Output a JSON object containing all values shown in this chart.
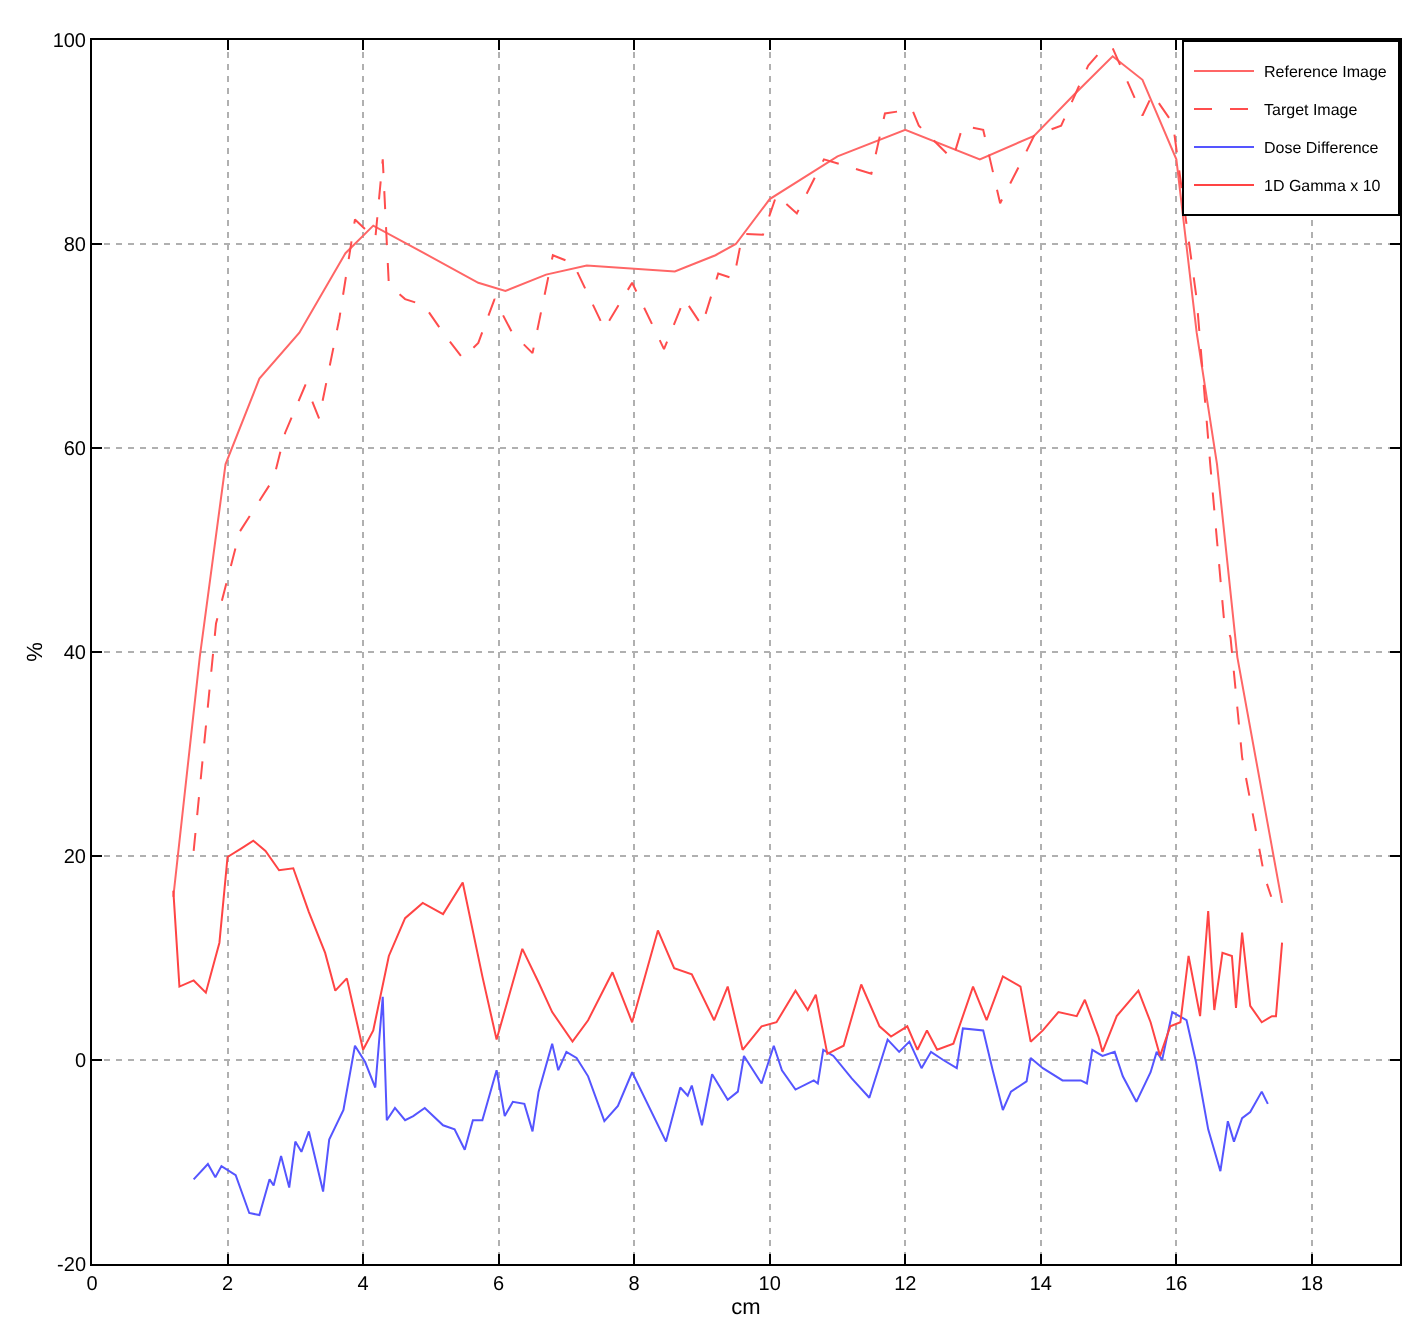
{
  "chart_data": {
    "type": "line",
    "xlabel": "cm",
    "ylabel": "%",
    "xlim": [
      0,
      19.3
    ],
    "ylim": [
      -20,
      100
    ],
    "xticks": [
      0,
      2,
      4,
      6,
      8,
      10,
      12,
      14,
      16,
      18
    ],
    "yticks": [
      -20,
      0,
      20,
      40,
      60,
      80,
      100
    ],
    "grid": true,
    "legend": "top right",
    "marker": "none",
    "series": [
      {
        "name": "Reference Image",
        "color": "#ff6666",
        "line_style": "solid",
        "x": [
          1.2,
          1.59,
          1.97,
          2.47,
          3.06,
          3.74,
          4.15,
          4.9,
          5.7,
          6.1,
          6.7,
          7.3,
          8.6,
          9.2,
          9.5,
          10.0,
          11.0,
          12.0,
          13.1,
          13.9,
          14.5,
          15.06,
          15.5,
          16.0,
          16.3,
          16.6,
          16.9,
          17.56
        ],
        "values": [
          16,
          39.5,
          58.4,
          66.8,
          71.3,
          79.1,
          81.8,
          79.1,
          76.2,
          75.4,
          77,
          77.9,
          77.3,
          78.9,
          80,
          84.4,
          88.6,
          91.2,
          88.3,
          90.6,
          94.7,
          98.4,
          96.1,
          88.3,
          71.3,
          58.4,
          39.5,
          15.4
        ]
      },
      {
        "name": "Target Image",
        "color": "#ff4d4d",
        "line_style": "dashed",
        "x": [
          1.5,
          1.83,
          2.18,
          2.68,
          2.85,
          3.15,
          3.35,
          3.65,
          3.88,
          4.18,
          4.29,
          4.38,
          4.62,
          4.9,
          5.18,
          5.47,
          5.7,
          5.94,
          6.2,
          6.5,
          6.8,
          7.1,
          7.56,
          7.97,
          8.44,
          8.74,
          9.0,
          9.24,
          9.47,
          9.6,
          9.9,
          10.1,
          10.4,
          10.8,
          11.1,
          11.5,
          11.7,
          12.1,
          12.2,
          12.7,
          12.85,
          13.15,
          13.4,
          13.7,
          13.9,
          14.3,
          14.7,
          14.9,
          15.06,
          15.5,
          15.65,
          15.95,
          16.1,
          16.3,
          16.5,
          16.7,
          16.8,
          16.97,
          17.3,
          17.4
        ],
        "values": [
          20.5,
          42.8,
          51.8,
          57,
          61.5,
          66.2,
          62.9,
          72.7,
          82.4,
          80.5,
          88.3,
          76,
          74.6,
          74,
          71.3,
          68.8,
          70.3,
          74.6,
          71.3,
          69.3,
          78.9,
          78.1,
          71.7,
          76.2,
          69.7,
          74.6,
          72,
          77.1,
          76.6,
          81,
          80.9,
          84.8,
          83,
          88.3,
          87.7,
          86.9,
          92.8,
          93.2,
          91.6,
          88.3,
          91.6,
          91.2,
          84,
          87.9,
          90.6,
          91.6,
          97.5,
          99,
          99.2,
          92.6,
          94.7,
          91.8,
          84.4,
          74.6,
          58.4,
          43.4,
          41.4,
          29.7,
          18,
          16
        ]
      },
      {
        "name": "Dose Difference",
        "color": "#5555ff",
        "line_style": "solid",
        "x": [
          1.5,
          1.71,
          1.82,
          1.91,
          2.12,
          2.32,
          2.47,
          2.62,
          2.68,
          2.79,
          2.91,
          3.0,
          3.09,
          3.2,
          3.41,
          3.5,
          3.71,
          3.88,
          4.03,
          4.18,
          4.29,
          4.35,
          4.47,
          4.62,
          4.74,
          4.91,
          5.18,
          5.35,
          5.5,
          5.62,
          5.76,
          5.97,
          6.09,
          6.21,
          6.38,
          6.5,
          6.59,
          6.79,
          6.88,
          7.0,
          7.15,
          7.32,
          7.56,
          7.76,
          7.97,
          8.47,
          8.68,
          8.79,
          8.85,
          9.0,
          9.15,
          9.38,
          9.53,
          9.62,
          9.88,
          10.06,
          10.18,
          10.38,
          10.65,
          10.71,
          10.79,
          10.94,
          11.21,
          11.47,
          11.74,
          11.91,
          12.06,
          12.24,
          12.38,
          12.56,
          12.76,
          12.85,
          13.15,
          13.29,
          13.44,
          13.56,
          13.79,
          13.85,
          14.03,
          14.32,
          14.59,
          14.68,
          14.76,
          14.91,
          15.09,
          15.21,
          15.41,
          15.62,
          15.71,
          15.79,
          15.94,
          16.15,
          16.29,
          16.47,
          16.65,
          16.76,
          16.85,
          16.97,
          17.09,
          17.26,
          17.35
        ],
        "values": [
          -11.7,
          -10.2,
          -11.5,
          -10.4,
          -11.3,
          -15,
          -15.2,
          -11.7,
          -12.3,
          -9.4,
          -12.5,
          -8,
          -9,
          -7,
          -12.9,
          -7.8,
          -4.9,
          1.4,
          -0.2,
          -2.7,
          6.2,
          -5.9,
          -4.7,
          -5.9,
          -5.5,
          -4.7,
          -6.4,
          -6.8,
          -8.8,
          -5.9,
          -5.9,
          -1,
          -5.5,
          -4.1,
          -4.3,
          -7,
          -3.1,
          1.6,
          -1,
          0.8,
          0.2,
          -1.6,
          -6,
          -4.5,
          -1.2,
          -8,
          -2.7,
          -3.5,
          -2.5,
          -6.4,
          -1.4,
          -3.9,
          -3.1,
          0.4,
          -2.3,
          1.4,
          -1,
          -2.9,
          -2,
          -2.3,
          1,
          0.4,
          -1.8,
          -3.7,
          2,
          0.8,
          1.8,
          -0.8,
          0.8,
          0,
          -0.8,
          3.1,
          2.9,
          -1,
          -4.9,
          -3.1,
          -2.1,
          0.2,
          -0.8,
          -2,
          -2,
          -2.3,
          1,
          0.4,
          0.8,
          -1.6,
          -4.1,
          -1.2,
          0.8,
          0,
          4.7,
          3.9,
          -0.2,
          -6.8,
          -10.9,
          -6,
          -8,
          -5.7,
          -5.1,
          -3.1,
          -4.3
        ]
      },
      {
        "name": "1D Gamma x 10",
        "color": "#ff4444",
        "line_style": "solid",
        "x": [
          1.2,
          1.29,
          1.5,
          1.68,
          1.88,
          2.0,
          2.24,
          2.38,
          2.56,
          2.76,
          2.97,
          3.2,
          3.44,
          3.59,
          3.76,
          4.0,
          4.15,
          4.38,
          4.62,
          4.88,
          5.18,
          5.47,
          5.76,
          5.97,
          6.35,
          6.59,
          6.79,
          7.09,
          7.32,
          7.68,
          7.97,
          8.35,
          8.59,
          8.85,
          9.18,
          9.38,
          9.6,
          9.88,
          10.1,
          10.38,
          10.56,
          10.68,
          10.85,
          11.09,
          11.35,
          11.62,
          11.79,
          12.03,
          12.18,
          12.32,
          12.47,
          12.71,
          13.0,
          13.2,
          13.44,
          13.7,
          13.85,
          14.03,
          14.26,
          14.53,
          14.65,
          14.85,
          14.91,
          15.12,
          15.44,
          15.62,
          15.76,
          15.91,
          16.06,
          16.18,
          16.35,
          16.47,
          16.56,
          16.68,
          16.82,
          16.88,
          16.97,
          17.09,
          17.26,
          17.41,
          17.47,
          17.56
        ],
        "values": [
          16.6,
          7.2,
          7.8,
          6.6,
          11.5,
          19.9,
          20.9,
          21.5,
          20.5,
          18.6,
          18.8,
          14.5,
          10.5,
          6.8,
          8,
          1,
          2.9,
          10.2,
          13.9,
          15.4,
          14.3,
          17.4,
          8.2,
          2,
          10.9,
          7.6,
          4.7,
          1.8,
          3.9,
          8.6,
          3.7,
          12.7,
          9,
          8.4,
          3.9,
          7.2,
          1,
          3.3,
          3.7,
          6.8,
          4.9,
          6.4,
          0.6,
          1.4,
          7.4,
          3.3,
          2.3,
          3.3,
          1,
          2.9,
          1,
          1.6,
          7.2,
          3.9,
          8.2,
          7.2,
          1.8,
          2.9,
          4.7,
          4.3,
          5.9,
          2.3,
          0.8,
          4.3,
          6.8,
          3.7,
          0.4,
          3.3,
          3.7,
          10.2,
          4.3,
          14.6,
          4.9,
          10.5,
          10.2,
          5.1,
          12.5,
          5.3,
          3.7,
          4.3,
          4.3,
          11.5
        ]
      }
    ]
  }
}
